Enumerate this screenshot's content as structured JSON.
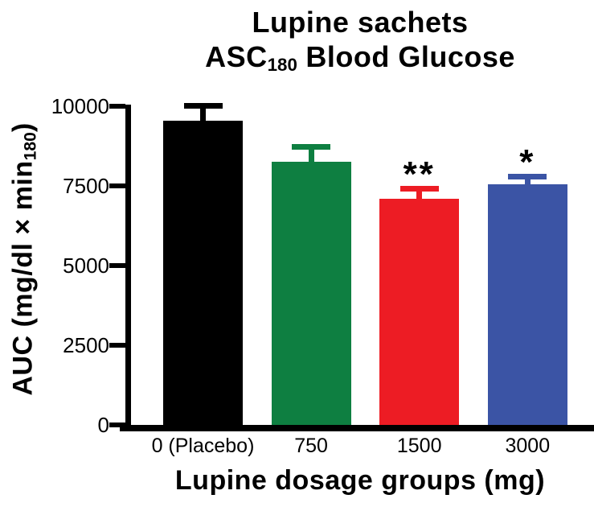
{
  "title": {
    "line1": "Lupine sachets",
    "line2_prefix": "ASC",
    "line2_sub": "180",
    "line2_suffix": " Blood Glucose"
  },
  "y_axis": {
    "label_prefix": "AUC (mg/dl × min",
    "label_sub": "180",
    "label_suffix": ")",
    "ticks": [
      0,
      2500,
      5000,
      7500,
      10000
    ]
  },
  "x_axis": {
    "label": "Lupine dosage groups (mg)"
  },
  "chart_data": {
    "type": "bar",
    "title": "Lupine sachets ASC180 Blood Glucose",
    "ylabel": "AUC (mg/dl × min180)",
    "xlabel": "Lupine dosage groups (mg)",
    "categories": [
      "0 (Placebo)",
      "750",
      "1500",
      "3000"
    ],
    "values": [
      9550,
      8250,
      7100,
      7550
    ],
    "errors": [
      550,
      560,
      400,
      330
    ],
    "error_direction": "upper",
    "significance": [
      "",
      "",
      "**",
      "*"
    ],
    "bar_colors": [
      "#000000",
      "#0e7f41",
      "#ed1c24",
      "#3b54a5"
    ],
    "ylim": [
      0,
      10000
    ],
    "grid": false,
    "legend": "none"
  }
}
